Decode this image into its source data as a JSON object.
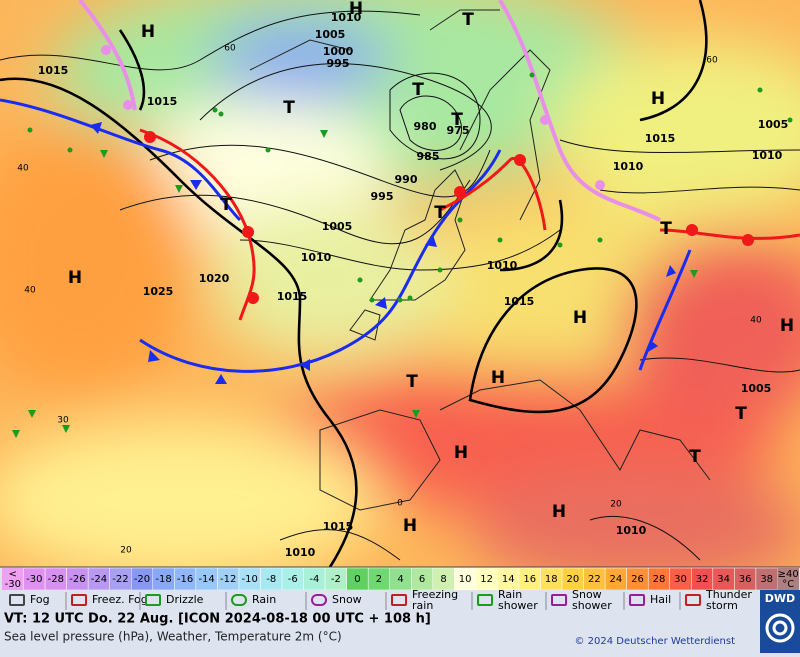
{
  "map": {
    "pressure_labels": [
      "1010",
      "1005",
      "1000",
      "995",
      "1015",
      "1015",
      "980",
      "975",
      "985",
      "990",
      "995",
      "1005",
      "1010",
      "1020",
      "1025",
      "1015",
      "1010",
      "1015",
      "1010",
      "1015",
      "1010",
      "1005",
      "1005",
      "1015",
      "1010",
      "1010"
    ],
    "pressure_centers": [
      "H",
      "H",
      "H",
      "H",
      "H",
      "H",
      "H",
      "H",
      "H",
      "H",
      "T",
      "T",
      "T",
      "T",
      "T",
      "T",
      "T",
      "T",
      "T",
      "T"
    ],
    "grid_labels": [
      "60",
      "60",
      "40",
      "40",
      "40",
      "30",
      "20",
      "20",
      "0"
    ]
  },
  "scale": {
    "first_cell": [
      "<",
      "-30"
    ],
    "values": [
      "-30",
      "-28",
      "-26",
      "-24",
      "-22",
      "-20",
      "-18",
      "-16",
      "-14",
      "-12",
      "-10",
      "-8",
      "-6",
      "-4",
      "-2",
      "0",
      "2",
      "4",
      "6",
      "8",
      "10",
      "12",
      "14",
      "16",
      "18",
      "20",
      "22",
      "24",
      "26",
      "28",
      "30",
      "32",
      "34",
      "36",
      "38"
    ],
    "last_cell": [
      "≥40",
      "°C"
    ],
    "first_color": "#f0a0f0",
    "colors": [
      "#e090f0",
      "#d890f0",
      "#c890f0",
      "#b898f0",
      "#a8a0f0",
      "#8898f0",
      "#8aa8f8",
      "#90b8f8",
      "#98c8f8",
      "#a0d0f8",
      "#a8e0f8",
      "#a8e8f0",
      "#a8f0e8",
      "#a8f0d8",
      "#b0f0c8",
      "#60d060",
      "#70d870",
      "#90e090",
      "#b0e8a0",
      "#d0f0b0",
      "#ffffe0",
      "#ffffc0",
      "#fff8a0",
      "#fff080",
      "#ffe060",
      "#ffd040",
      "#ffc040",
      "#ffa838",
      "#ff9038",
      "#ff7838",
      "#f86048",
      "#f05050",
      "#e85858",
      "#d86060",
      "#c07070"
    ],
    "last_color": "#b08080"
  },
  "weather_legend": [
    "Fog",
    "Freez. Fog",
    "Drizzle",
    "Rain",
    "Snow",
    "Freezing rain",
    "Rain shower",
    "Snow shower",
    "Hail",
    "Thunder storm"
  ],
  "footer": {
    "valid_time": "VT: 12 UTC Do.  22 Aug. [ICON 2024-08-18  00 UTC + 108 h]",
    "description": "Sea level pressure (hPa), Weather, Temperature 2m (°C)",
    "copyright": "© 2024 Deutscher Wetterdienst",
    "logo": "DWD"
  }
}
